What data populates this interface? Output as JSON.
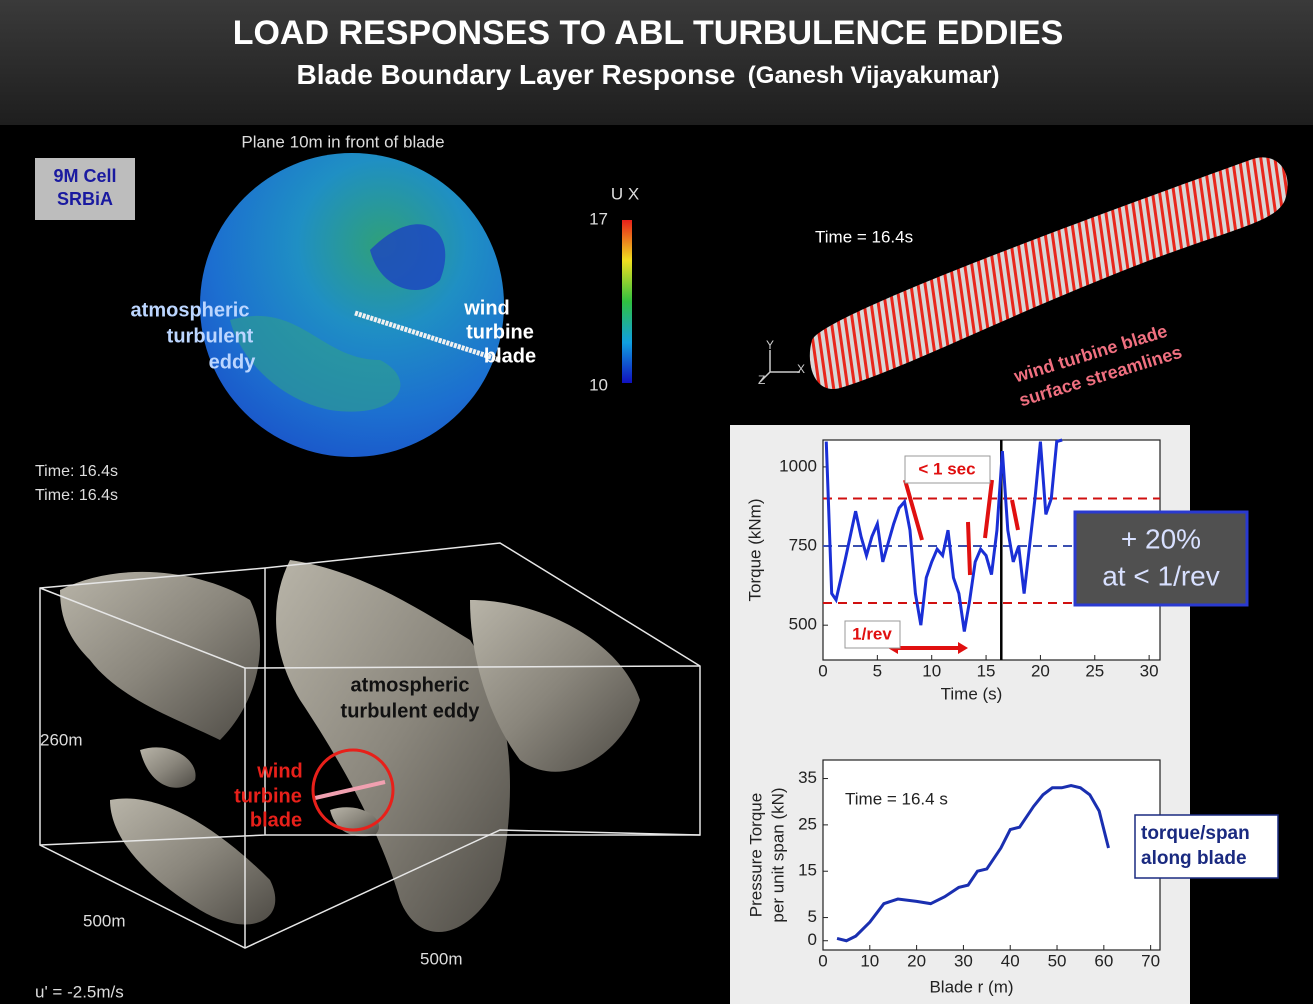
{
  "header": {
    "title": "LOAD RESPONSES TO ABL TURBULENCE EDDIES",
    "subtitle": "Blade Boundary Layer Response",
    "author": "(Ganesh Vijayakumar)"
  },
  "plane_view": {
    "caption": "Plane 10m in front of blade",
    "badge": [
      "9M Cell",
      "SRBiA"
    ],
    "eddy_label": [
      "atmospheric",
      "turbulent",
      "eddy"
    ],
    "blade_label": [
      "wind",
      "turbine",
      "blade"
    ],
    "colorbar": {
      "title": "U X",
      "ticks": [
        17,
        10
      ]
    }
  },
  "times": [
    "Time: 16.4s",
    "Time: 16.4s"
  ],
  "volume_view": {
    "eddy_label": [
      "atmospheric",
      "turbulent eddy"
    ],
    "blade_label": [
      "wind",
      "turbine",
      "blade"
    ],
    "height": "260m",
    "depth": "500m",
    "width": "500m",
    "contour": "u' = -2.5m/s"
  },
  "blade_view": {
    "time": "Time =  16.4s",
    "label": [
      "wind turbine blade",
      "surface streamlines"
    ],
    "axes": [
      "Y",
      "Z",
      "X"
    ]
  },
  "chart_data": [
    {
      "type": "line",
      "xlabel": "Time (s)",
      "ylabel": "Torque (kNm)",
      "xlim": [
        0,
        31
      ],
      "ylim": [
        390,
        1085
      ],
      "xticks": [
        0,
        5,
        10,
        15,
        20,
        25,
        30
      ],
      "yticks": [
        500,
        750,
        1000
      ],
      "series": [
        {
          "color": "#1a2fd6",
          "x": [
            0.3,
            0.8,
            1.2,
            2,
            3,
            3.5,
            4,
            4.5,
            5,
            5.5,
            6,
            6.5,
            7,
            7.5,
            8,
            8.5,
            9,
            9.5,
            10,
            10.5,
            11,
            11.5,
            12,
            12.5,
            13,
            13.5,
            14,
            14.5,
            15,
            15.5,
            16,
            16.5,
            17,
            17.5,
            18,
            18.5,
            19,
            19.5,
            20,
            20.5,
            21,
            21.5,
            22
          ],
          "values": [
            1080,
            600,
            580,
            700,
            860,
            780,
            720,
            780,
            820,
            700,
            760,
            820,
            870,
            890,
            800,
            600,
            500,
            650,
            700,
            740,
            720,
            800,
            650,
            600,
            480,
            580,
            700,
            740,
            720,
            660,
            800,
            1050,
            800,
            700,
            750,
            600,
            750,
            900,
            1080,
            850,
            900,
            1080,
            1085
          ]
        }
      ],
      "reference_lines": [
        {
          "value": 900,
          "color": "#d01010"
        },
        {
          "value": 750,
          "color": "#3a4fb0"
        },
        {
          "value": 570,
          "color": "#d01010"
        }
      ],
      "marker_x": 16.4,
      "annotations": [
        "< 1 sec",
        "1/rev"
      ],
      "callout": [
        "+ 20%",
        "at < 1/rev"
      ]
    },
    {
      "type": "line",
      "xlabel": "Blade r (m)",
      "ylabel": [
        "Pressure Torque",
        "per unit span (kN)"
      ],
      "xlim": [
        0,
        72
      ],
      "ylim": [
        -2,
        39
      ],
      "xticks": [
        0,
        10,
        20,
        30,
        40,
        50,
        60,
        70
      ],
      "yticks": [
        0,
        5,
        15,
        25,
        35
      ],
      "series": [
        {
          "color": "#1a2fb0",
          "x": [
            3,
            5,
            7,
            10,
            13,
            16,
            20,
            23,
            26,
            29,
            31,
            33,
            35,
            38,
            40,
            42,
            45,
            47,
            49,
            51,
            53,
            55,
            57,
            59,
            61
          ],
          "values": [
            0.5,
            0,
            1,
            4,
            8,
            9,
            8.5,
            8,
            9.5,
            11.5,
            12,
            15,
            15.5,
            20,
            24,
            24.5,
            29,
            31.5,
            33,
            33,
            33.5,
            33,
            31.5,
            28,
            20
          ]
        }
      ],
      "annotations": [
        "Time = 16.4 s"
      ],
      "callout": [
        "torque/span",
        "along blade"
      ]
    }
  ]
}
